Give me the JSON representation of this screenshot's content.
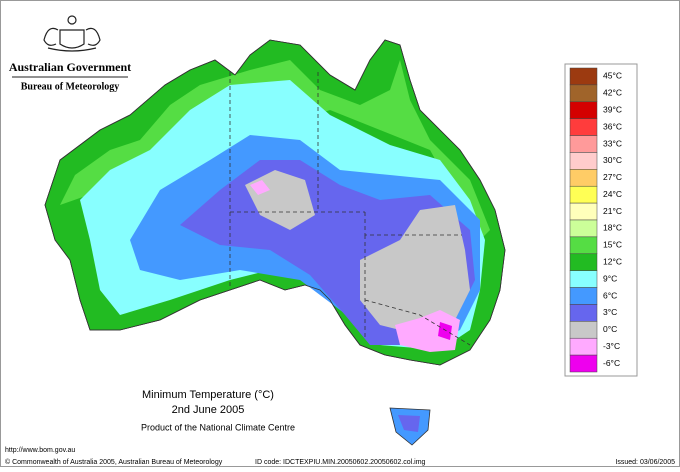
{
  "header": {
    "agency": "Australian Government",
    "bureau": "Bureau of Meteorology"
  },
  "map": {
    "title": "Minimum Temperature (°C)",
    "date": "2nd June 2005",
    "credit": "Product of the National Climate Centre"
  },
  "legend": {
    "items": [
      {
        "label": "45°C",
        "color": "#9c3a10"
      },
      {
        "label": "42°C",
        "color": "#a0642a"
      },
      {
        "label": "39°C",
        "color": "#d40000"
      },
      {
        "label": "36°C",
        "color": "#ff3c3c"
      },
      {
        "label": "33°C",
        "color": "#ff9a9a"
      },
      {
        "label": "30°C",
        "color": "#ffcccc"
      },
      {
        "label": "27°C",
        "color": "#ffcc66"
      },
      {
        "label": "24°C",
        "color": "#ffff55"
      },
      {
        "label": "21°C",
        "color": "#ffffbb"
      },
      {
        "label": "18°C",
        "color": "#ccff99"
      },
      {
        "label": "15°C",
        "color": "#55dd44"
      },
      {
        "label": "12°C",
        "color": "#22bb22"
      },
      {
        "label": "9°C",
        "color": "#88ffff"
      },
      {
        "label": "6°C",
        "color": "#4499ff"
      },
      {
        "label": "3°C",
        "color": "#6666ee"
      },
      {
        "label": "0°C",
        "color": "#c8c8c8"
      },
      {
        "label": "-3°C",
        "color": "#ffaaff"
      },
      {
        "label": "-6°C",
        "color": "#ee00ee"
      }
    ]
  },
  "footer": {
    "url": "http://www.bom.gov.au",
    "copyright": "© Commonwealth of Australia 2005, Australian Bureau of Meteorology",
    "id_code": "ID code: IDCTEXPIU.MIN.20050602.20050602.col.img",
    "issued": "Issued: 03/06/2005"
  }
}
